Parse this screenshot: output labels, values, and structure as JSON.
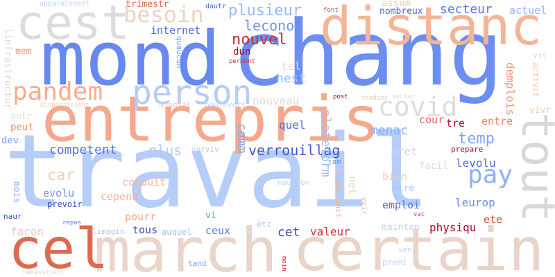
{
  "words": [
    {
      "id": "travail",
      "text": "travail",
      "color": "#b5cdf8"
    },
    {
      "id": "chang",
      "text": "chang",
      "color": "#6b8ef0"
    },
    {
      "id": "mond",
      "text": "mond",
      "color": "#6788ee"
    },
    {
      "id": "entrepris",
      "text": "entrepris",
      "color": "#f5a98c"
    },
    {
      "id": "distanc",
      "text": "distanc",
      "color": "#f4b597"
    },
    {
      "id": "march",
      "text": "march",
      "color": "#e9d5cb"
    },
    {
      "id": "certain",
      "text": "certain",
      "color": "#ead4c8"
    },
    {
      "id": "cest",
      "text": "cest",
      "color": "#dcdcdc"
    },
    {
      "id": "cel",
      "text": "cel",
      "color": "#dc6a4f"
    },
    {
      "id": "tout",
      "text": "tout",
      "color": "#d8d8d8"
    },
    {
      "id": "person",
      "text": "person",
      "color": "#b3cdf7"
    },
    {
      "id": "pandem",
      "text": "pandem",
      "color": "#f7ad90"
    },
    {
      "id": "covid",
      "text": "covid",
      "color": "#dfdbd9"
    },
    {
      "id": "besoin",
      "text": "besoin",
      "color": "#ecd3c6"
    },
    {
      "id": "pay",
      "text": "pay",
      "color": "#8db0fe"
    },
    {
      "id": "plusieur",
      "text": "plusieur",
      "color": "#96b7ff"
    },
    {
      "id": "leconom",
      "text": "leconom",
      "color": "#6f92f3"
    },
    {
      "id": "nouvel",
      "text": "nouvel",
      "color": "#c43032"
    },
    {
      "id": "secteur",
      "text": "secteur",
      "color": "#5a78e4"
    },
    {
      "id": "actuel",
      "text": "actuel",
      "color": "#93b5fe"
    },
    {
      "id": "internet",
      "text": "internet",
      "color": "#4e68d8"
    },
    {
      "id": "temp",
      "text": "temp",
      "color": "#80a3fa"
    },
    {
      "id": "competent",
      "text": "competent",
      "color": "#5875e1"
    },
    {
      "id": "verrouillag",
      "text": "verrouillag",
      "color": "#4358cb"
    },
    {
      "id": "car",
      "text": "car",
      "color": "#f0cdbb"
    },
    {
      "id": "plus",
      "text": "plus",
      "color": "#b0cbf9"
    },
    {
      "id": "menac",
      "text": "menac",
      "color": "#8db0fe"
    },
    {
      "id": "nouveau",
      "text": "nouveau",
      "color": "#e2dad5"
    },
    {
      "id": "comm",
      "text": "comm",
      "color": "#85a8fc"
    },
    {
      "id": "plateform",
      "text": "plateform",
      "color": "#a1c0ff"
    },
    {
      "id": "quel",
      "text": "quel",
      "color": "#4e68d8"
    },
    {
      "id": "nest",
      "text": "nest",
      "color": "#9dbdff"
    },
    {
      "id": "tel",
      "text": "tel",
      "color": "#e0dbd8"
    },
    {
      "id": "dun",
      "text": "dun",
      "color": "#b40426"
    },
    {
      "id": "perdent",
      "text": "perdent",
      "color": "#c53334"
    },
    {
      "id": "assum",
      "text": "assum",
      "color": "#f2cbb7"
    },
    {
      "id": "nombreux",
      "text": "nombreux",
      "color": "#4b64d5"
    },
    {
      "id": "demplois",
      "text": "demplois",
      "color": "#f49a7b"
    },
    {
      "id": "entre",
      "text": "entre",
      "color": "#ee8468"
    },
    {
      "id": "cour",
      "text": "cour",
      "color": "#e0654f"
    },
    {
      "id": "tre",
      "text": "tre",
      "color": "#b40426"
    },
    {
      "id": "levolu",
      "text": "levolu",
      "color": "#4f69d9"
    },
    {
      "id": "leurop",
      "text": "leurop",
      "color": "#6a8bef"
    },
    {
      "id": "pret",
      "text": "pret",
      "color": "#c5d6f2"
    },
    {
      "id": "facil",
      "text": "facil",
      "color": "#d5dbe5"
    },
    {
      "id": "bien",
      "text": "bien",
      "color": "#f4c6af"
    },
    {
      "id": "etre",
      "text": "etre",
      "color": "#aec9fc"
    },
    {
      "id": "emploi",
      "text": "emploi",
      "color": "#5875e1"
    },
    {
      "id": "net",
      "text": "net",
      "color": "#e8d6cc"
    },
    {
      "id": "jam",
      "text": "jam",
      "color": "#6f92f3"
    },
    {
      "id": "valeur",
      "text": "valeur",
      "color": "#c73635"
    },
    {
      "id": "physiqu",
      "text": "physiqu",
      "color": "#b40426"
    },
    {
      "id": "ete",
      "text": "ete",
      "color": "#d0473d"
    },
    {
      "id": "mainten",
      "text": "mainten",
      "color": "#c0d4f5"
    },
    {
      "id": "cet",
      "text": "cet",
      "color": "#3b4cc0"
    },
    {
      "id": "ceux",
      "text": "ceux",
      "color": "#5b7ae5"
    },
    {
      "id": "tous",
      "text": "tous",
      "color": "#3b4cc0"
    },
    {
      "id": "pourr",
      "text": "pourr",
      "color": "#f6a385"
    },
    {
      "id": "cepend",
      "text": "cepend",
      "color": "#f2b196"
    },
    {
      "id": "conduit",
      "text": "conduit",
      "color": "#f2b89c"
    },
    {
      "id": "evolu",
      "text": "evolu",
      "color": "#7597f6"
    },
    {
      "id": "prevoir",
      "text": "prevoir",
      "color": "#3b4cc0"
    },
    {
      "id": "mois",
      "text": "mois",
      "color": "#8caffe"
    },
    {
      "id": "facon",
      "text": "facon",
      "color": "#f0cdbb"
    },
    {
      "id": "peut",
      "text": "peut",
      "color": "#f08a6c"
    },
    {
      "id": "autr",
      "text": "autr",
      "color": "#dcdddd"
    },
    {
      "id": "dev",
      "text": "dev",
      "color": "#7da0f9"
    },
    {
      "id": "mem",
      "text": "mem",
      "color": "#f39475"
    },
    {
      "id": "linfrastructur",
      "text": "linfrastructur",
      "color": "#e5d8d1"
    },
    {
      "id": "apparaissent",
      "text": "apparaissent",
      "color": "#bad0f8"
    },
    {
      "id": "trimestr",
      "text": "trimestr",
      "color": "#e0654f"
    },
    {
      "id": "quaucun",
      "text": "quaucun",
      "color": "#7396f5"
    },
    {
      "id": "dautr",
      "text": "dautr",
      "color": "#4b64d5"
    },
    {
      "id": "font",
      "text": "font",
      "color": "#d0473d"
    },
    {
      "id": "vit",
      "text": "vit",
      "color": "#e8d6cc"
    },
    {
      "id": "activit",
      "text": "activit",
      "color": "#f2cab5"
    },
    {
      "id": "vivr",
      "text": "vivr",
      "color": "#f1ccb8"
    },
    {
      "id": "boulevers",
      "text": "boulevers",
      "color": "#c0d4f5"
    },
    {
      "id": "mondial",
      "text": "mondial",
      "color": "#f5c4ac"
    },
    {
      "id": "disparaissent",
      "text": "disparaissent",
      "color": "#f2cbb7"
    },
    {
      "id": "post",
      "text": "post",
      "color": "#b40426"
    },
    {
      "id": "tendanc",
      "text": "tendanc",
      "color": "#f4c5ad"
    },
    {
      "id": "surfac",
      "text": "surfac",
      "color": "#e7d7ce"
    },
    {
      "id": "prepare",
      "text": "prepare",
      "color": "#b40426"
    },
    {
      "id": "surviv",
      "text": "surviv",
      "color": "#adc9fd"
    },
    {
      "id": "naurion",
      "text": "naurion",
      "color": "#c5d6f2"
    },
    {
      "id": "opportunit",
      "text": "opportunit",
      "color": "#f2b196"
    },
    {
      "id": "voir",
      "text": "voir",
      "color": "#f5c4ac"
    },
    {
      "id": "vi",
      "text": "vi",
      "color": "#7396f5"
    },
    {
      "id": "etc",
      "text": "etc",
      "color": "#aec9fc"
    },
    {
      "id": "limagin",
      "text": "limagin",
      "color": "#aac7fd"
    },
    {
      "id": "auquel",
      "text": "auquel",
      "color": "#a3c2fe"
    },
    {
      "id": "repos",
      "text": "repos",
      "color": "#5d7ce6"
    },
    {
      "id": "naur",
      "text": "naur",
      "color": "#3b4cc0"
    },
    {
      "id": "vac",
      "text": "vac",
      "color": "#cd423b"
    },
    {
      "id": "ven",
      "text": "ven",
      "color": "#cad8ef"
    },
    {
      "id": "premi",
      "text": "premi",
      "color": "#c5d6f2"
    },
    {
      "id": "tand",
      "text": "tand",
      "color": "#7b9ff9"
    },
    {
      "id": "moin",
      "text": "moin",
      "color": "#c0282f"
    },
    {
      "id": "necessitent",
      "text": "necessitent",
      "color": "#f2cbb7"
    }
  ]
}
